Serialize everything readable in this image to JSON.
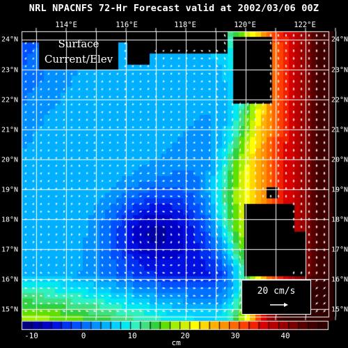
{
  "title": "NRL NPACNFS 72-Hr Forecast valid at 2002/03/06 00Z",
  "panel_label_line1": "Surface",
  "panel_label_line2": "Current/Elev",
  "vector_legend": "20 cm/s",
  "lon_labels": [
    "114°E",
    "116°E",
    "118°E",
    "120°E",
    "122°E"
  ],
  "lat_labels": [
    "24°N",
    "23°N",
    "22°N",
    "21°N",
    "20°N",
    "19°N",
    "18°N",
    "17°N",
    "16°N",
    "15°N"
  ],
  "colorbar": {
    "unit": "cm",
    "tick_labels": [
      "-10",
      "0",
      "10",
      "20",
      "30",
      "40"
    ],
    "min": -14,
    "max": 48,
    "step": 2,
    "colors": [
      "#000080",
      "#0000a0",
      "#0000c8",
      "#0010e0",
      "#0030f0",
      "#0050ff",
      "#0070ff",
      "#0090ff",
      "#00b0ff",
      "#00d0ff",
      "#00e8f0",
      "#30f0c0",
      "#40e080",
      "#30d040",
      "#60e000",
      "#a0f000",
      "#d0f000",
      "#ffff00",
      "#ffd800",
      "#ffb000",
      "#ff9000",
      "#ff6800",
      "#ff4000",
      "#f02000",
      "#d80000",
      "#b80000",
      "#980000",
      "#780000",
      "#580000",
      "#400000",
      "#300000"
    ]
  },
  "colors": {
    "land": "#000000",
    "vectors": "#ffffff",
    "grid": "#ffffff"
  }
}
